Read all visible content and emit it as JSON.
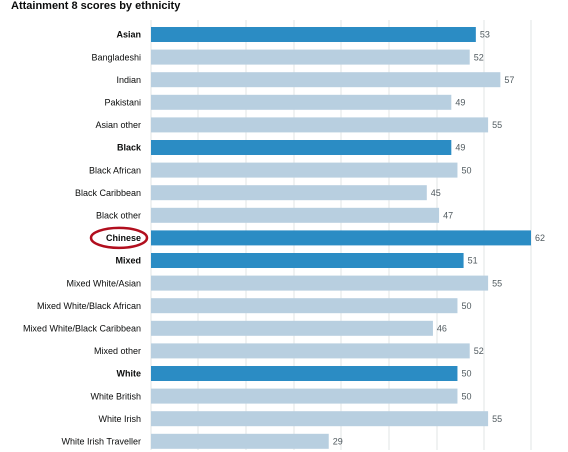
{
  "chart_data": {
    "type": "bar",
    "orientation": "horizontal",
    "title": "Attainment 8 scores by ethnicity",
    "xlabel": "",
    "ylabel": "",
    "xlim": [
      0,
      62
    ],
    "grid": true,
    "colors": {
      "group": "#2b8cc4",
      "subgroup": "#b8cfe0",
      "highlight_ring": "#b10e1e"
    },
    "categories": [
      "Asian",
      "Bangladeshi",
      "Indian",
      "Pakistani",
      "Asian other",
      "Black",
      "Black African",
      "Black Caribbean",
      "Black other",
      "Chinese",
      "Mixed",
      "Mixed White/Asian",
      "Mixed White/Black African",
      "Mixed White/Black Caribbean",
      "Mixed other",
      "White",
      "White British",
      "White Irish",
      "White Irish Traveller"
    ],
    "values": [
      53,
      52,
      57,
      49,
      55,
      49,
      50,
      45,
      47,
      62,
      51,
      55,
      50,
      46,
      52,
      50,
      50,
      55,
      29
    ],
    "value_labels": [
      "53",
      "52",
      "57",
      "49",
      "55",
      "49",
      "50",
      "45",
      "47",
      "62",
      "51",
      "55",
      "50",
      "46",
      "52",
      "50",
      "50",
      "55",
      "29"
    ],
    "is_group": [
      true,
      false,
      false,
      false,
      false,
      true,
      false,
      false,
      false,
      true,
      true,
      false,
      false,
      false,
      false,
      true,
      false,
      false,
      false
    ],
    "highlighted": "Chinese"
  }
}
